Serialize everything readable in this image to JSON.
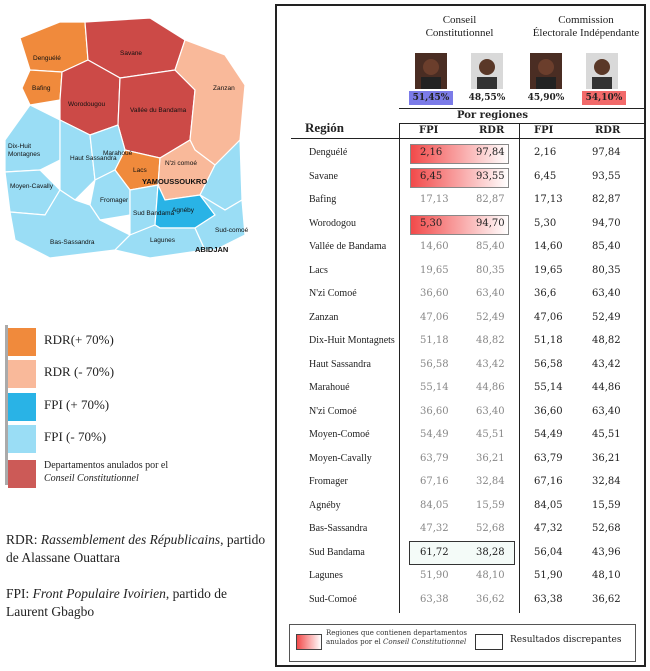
{
  "map": {
    "labels": [
      "Denguélé",
      "Savane",
      "Zanzan",
      "Worodougou",
      "Bafing",
      "Dix-Huit",
      "Montagnes",
      "Vallée du Bandama",
      "N'zi comoé",
      "Marahoué",
      "Haut Sassandra",
      "Moyen-Cavally",
      "Lacs",
      "Fromager",
      "Sud Bandama",
      "Agnéby",
      "Bas-Sassandra",
      "Lagunes",
      "Sud-comoé"
    ],
    "cities": [
      "YAMOUSSOUKRO",
      "ABIDJAN"
    ]
  },
  "legend": [
    "RDR(+ 70%)",
    "RDR (- 70%)",
    "FPI (+ 70%)",
    "FPI (- 70%)"
  ],
  "legend_annulled": {
    "text": "Departamentos anulados por el",
    "italic": "Conseil Constitutionnel"
  },
  "notes": {
    "rdr_abbr": "RDR:",
    "rdr_name": "Rassemblement des Républicains",
    "rdr_rest": ", partido de Alassane Ouattara",
    "fpi_abbr": "FPI:",
    "fpi_name": "Front Populaire Ivoirien",
    "fpi_rest": ", partido de Laurent Gbagbo"
  },
  "panel": {
    "header_left": [
      "Conseil",
      "Constitutionnel"
    ],
    "header_right": [
      "Commission",
      "Électorale Indépendante"
    ],
    "pcts": [
      "51,45%",
      "48,55%",
      "45,90%",
      "54,10%"
    ],
    "por_regiones": "Por regiones",
    "region_header": "Región",
    "cols": [
      "FPI",
      "RDR",
      "FPI",
      "RDR"
    ],
    "legend_left": [
      "Regiones que contienen departamentos",
      "anulados por el",
      "Conseil Constitutionnel"
    ],
    "legend_right": "Resultados discrepantes",
    "colors": {
      "annulled": "#F24A4A",
      "discrepant_border": "#333333"
    },
    "rows": [
      {
        "region": "Denguélé",
        "cc_fpi": "2,16",
        "cc_rdr": "97,84",
        "cei_fpi": "2,16",
        "cei_rdr": "97,84",
        "annulled": true,
        "grey": false,
        "discrepant": false
      },
      {
        "region": "Savane",
        "cc_fpi": "6,45",
        "cc_rdr": "93,55",
        "cei_fpi": "6,45",
        "cei_rdr": "93,55",
        "annulled": true,
        "grey": false,
        "discrepant": false
      },
      {
        "region": "Bafing",
        "cc_fpi": "17,13",
        "cc_rdr": "82,87",
        "cei_fpi": "17,13",
        "cei_rdr": "82,87",
        "annulled": false,
        "grey": true,
        "discrepant": false
      },
      {
        "region": "Worodogou",
        "cc_fpi": "5,30",
        "cc_rdr": "94,70",
        "cei_fpi": "5,30",
        "cei_rdr": "94,70",
        "annulled": true,
        "grey": false,
        "discrepant": false
      },
      {
        "region": "Vallée de Bandama",
        "cc_fpi": "14,60",
        "cc_rdr": "85,40",
        "cei_fpi": "14,60",
        "cei_rdr": "85,40",
        "annulled": false,
        "grey": true,
        "discrepant": false
      },
      {
        "region": "Lacs",
        "cc_fpi": "19,65",
        "cc_rdr": "80,35",
        "cei_fpi": "19,65",
        "cei_rdr": "80,35",
        "annulled": false,
        "grey": true,
        "discrepant": false
      },
      {
        "region": "N'zi Comoé",
        "cc_fpi": "36,60",
        "cc_rdr": "63,40",
        "cei_fpi": "36,6",
        "cei_rdr": "63,40",
        "annulled": false,
        "grey": true,
        "discrepant": false
      },
      {
        "region": "Zanzan",
        "cc_fpi": "47,06",
        "cc_rdr": "52,49",
        "cei_fpi": "47,06",
        "cei_rdr": "52,49",
        "annulled": false,
        "grey": true,
        "discrepant": false
      },
      {
        "region": "Dix-Huit Montagnets",
        "cc_fpi": "51,18",
        "cc_rdr": "48,82",
        "cei_fpi": "51,18",
        "cei_rdr": "48,82",
        "annulled": false,
        "grey": true,
        "discrepant": false
      },
      {
        "region": "Haut Sassandra",
        "cc_fpi": "56,58",
        "cc_rdr": "43,42",
        "cei_fpi": "56,58",
        "cei_rdr": "43,42",
        "annulled": false,
        "grey": true,
        "discrepant": false
      },
      {
        "region": "Marahoué",
        "cc_fpi": "55,14",
        "cc_rdr": "44,86",
        "cei_fpi": "55,14",
        "cei_rdr": "44,86",
        "annulled": false,
        "grey": true,
        "discrepant": false
      },
      {
        "region": "N'zi Comoé",
        "cc_fpi": "36,60",
        "cc_rdr": "63,40",
        "cei_fpi": "36,60",
        "cei_rdr": "63,40",
        "annulled": false,
        "grey": true,
        "discrepant": false
      },
      {
        "region": "Moyen-Comoé",
        "cc_fpi": "54,49",
        "cc_rdr": "45,51",
        "cei_fpi": "54,49",
        "cei_rdr": "45,51",
        "annulled": false,
        "grey": true,
        "discrepant": false
      },
      {
        "region": "Moyen-Cavally",
        "cc_fpi": "63,79",
        "cc_rdr": "36,21",
        "cei_fpi": "63,79",
        "cei_rdr": "36,21",
        "annulled": false,
        "grey": true,
        "discrepant": false
      },
      {
        "region": "Fromager",
        "cc_fpi": "67,16",
        "cc_rdr": "32,84",
        "cei_fpi": "67,16",
        "cei_rdr": "32,84",
        "annulled": false,
        "grey": true,
        "discrepant": false
      },
      {
        "region": "Agnéby",
        "cc_fpi": "84,05",
        "cc_rdr": "15,59",
        "cei_fpi": "84,05",
        "cei_rdr": "15,59",
        "annulled": false,
        "grey": true,
        "discrepant": false
      },
      {
        "region": "Bas-Sassandra",
        "cc_fpi": "47,32",
        "cc_rdr": "52,68",
        "cei_fpi": "47,32",
        "cei_rdr": "52,68",
        "annulled": false,
        "grey": true,
        "discrepant": false
      },
      {
        "region": "Sud Bandama",
        "cc_fpi": "61,72",
        "cc_rdr": "38,28",
        "cei_fpi": "56,04",
        "cei_rdr": "43,96",
        "annulled": false,
        "grey": false,
        "discrepant": true
      },
      {
        "region": "Lagunes",
        "cc_fpi": "51,90",
        "cc_rdr": "48,10",
        "cei_fpi": "51,90",
        "cei_rdr": "48,10",
        "annulled": false,
        "grey": true,
        "discrepant": false
      },
      {
        "region": "Sud-Comoé",
        "cc_fpi": "63,38",
        "cc_rdr": "36,62",
        "cei_fpi": "63,38",
        "cei_rdr": "36,62",
        "annulled": false,
        "grey": true,
        "discrepant": false
      }
    ]
  }
}
